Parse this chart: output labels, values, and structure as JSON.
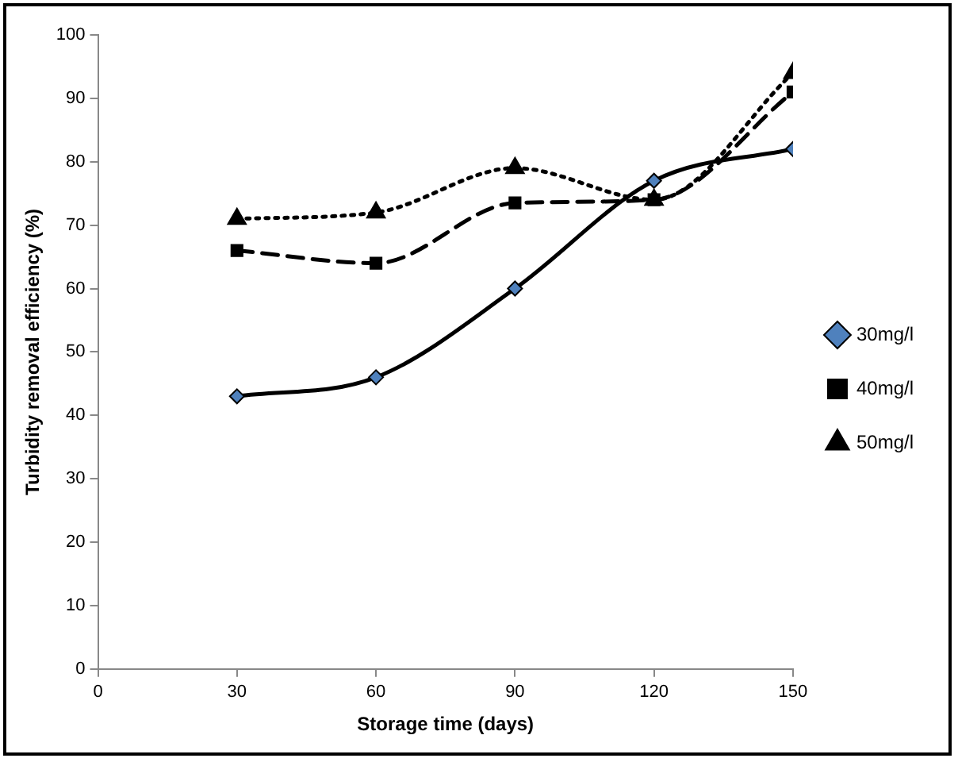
{
  "chart_data": {
    "type": "line",
    "xlabel": "Storage time (days)",
    "ylabel": "Turbidity removal efficiency (%)",
    "x": [
      30,
      60,
      90,
      120,
      150
    ],
    "xlim": [
      0,
      150
    ],
    "xticks": [
      0,
      30,
      60,
      90,
      120,
      150
    ],
    "ylim": [
      0,
      100
    ],
    "yticks": [
      0,
      10,
      20,
      30,
      40,
      50,
      60,
      70,
      80,
      90,
      100
    ],
    "grid": false,
    "legend": "right",
    "series": [
      {
        "name": "30mg/l",
        "color": "#000000",
        "values": [
          43,
          46,
          60,
          77,
          82
        ],
        "marker": "diamond",
        "line_style": "solid"
      },
      {
        "name": "40mg/l",
        "color": "#000000",
        "values": [
          66,
          64,
          73.5,
          74,
          91
        ],
        "marker": "square",
        "line_style": "dashed"
      },
      {
        "name": "50mg/l",
        "color": "#000000",
        "values": [
          71,
          72,
          79,
          74,
          94
        ],
        "marker": "triangle",
        "line_style": "dotted"
      }
    ]
  }
}
